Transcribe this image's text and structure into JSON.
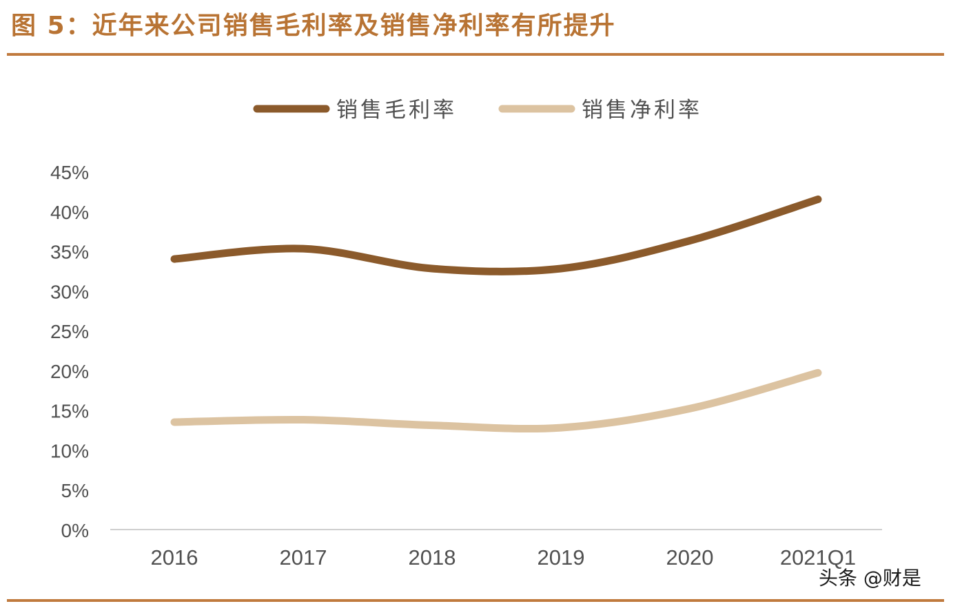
{
  "figure": {
    "title": "图 5：近年来公司销售毛利率及销售净利率有所提升",
    "watermark": "头条 @财是"
  },
  "colors": {
    "accent": "#c07a3e",
    "title": "#b87333",
    "gross_margin": "#8b5a2b",
    "net_margin": "#dcc3a1",
    "axis_text": "#505050",
    "axis_line": "#bfbfbf"
  },
  "chart_data": {
    "type": "line",
    "categories": [
      "2016",
      "2017",
      "2018",
      "2019",
      "2020",
      "2021Q1"
    ],
    "series": [
      {
        "name": "销售毛利率",
        "values": [
          34.0,
          35.3,
          32.8,
          32.8,
          36.3,
          41.5
        ]
      },
      {
        "name": "销售净利率",
        "values": [
          13.5,
          13.8,
          13.1,
          12.8,
          15.2,
          19.7
        ]
      }
    ],
    "yticks": [
      "0%",
      "5%",
      "10%",
      "15%",
      "20%",
      "25%",
      "30%",
      "35%",
      "40%",
      "45%"
    ],
    "ylim": [
      0,
      45
    ],
    "y_unit": "%",
    "legend_position": "top-center",
    "grid": false,
    "smooth": true
  }
}
